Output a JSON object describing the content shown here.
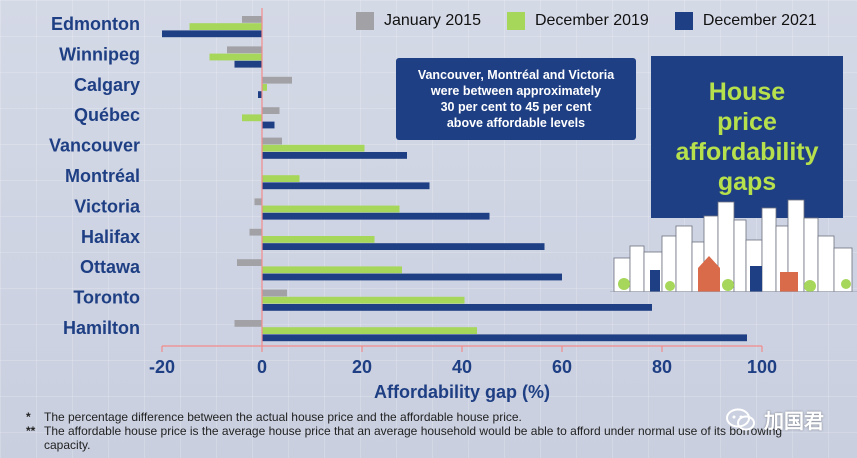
{
  "legend_position": "top",
  "callout": {
    "lines": [
      "Vancouver, Montréal and Victoria",
      "were between approximately",
      "30 per cent to 45 per cent",
      "above affordable levels"
    ]
  },
  "title_box": {
    "lines": [
      "House",
      "price",
      "affordability",
      "gaps"
    ]
  },
  "footnotes": [
    {
      "mark": "*",
      "text": "The percentage difference between the actual house price and the affordable house price."
    },
    {
      "mark": "**",
      "text": "The affordable house price is the average house price that an average household would be able to afford under normal use of its borrowing capacity."
    }
  ],
  "watermark": {
    "text": "加国君",
    "icon": "wechat-icon"
  },
  "colors": {
    "jan2015": "#a2a2a6",
    "dec2019": "#a6d65a",
    "dec2021": "#1f3f84",
    "category_text": "#1f3f84",
    "zero_line": "#f28b8b",
    "axis_text": "#1f3f84"
  },
  "chart_data": {
    "type": "bar",
    "orientation": "horizontal",
    "categories": [
      "Edmonton",
      "Winnipeg",
      "Calgary",
      "Québec",
      "Vancouver",
      "Montréal",
      "Victoria",
      "Halifax",
      "Ottawa",
      "Toronto",
      "Hamilton"
    ],
    "series": [
      {
        "name": "January 2015",
        "values": [
          -4,
          -7,
          6,
          3.5,
          4,
          0,
          -1.5,
          -2.5,
          -5,
          5,
          -5.5
        ]
      },
      {
        "name": "December 2019",
        "values": [
          -14.5,
          -10.5,
          1,
          -4,
          20.5,
          7.5,
          27.5,
          22.5,
          28,
          40.5,
          43
        ]
      },
      {
        "name": "December 2021",
        "values": [
          -20,
          -5.5,
          -0.8,
          2.5,
          29,
          33.5,
          45.5,
          56.5,
          60,
          78,
          97
        ]
      }
    ],
    "xlim": [
      -20,
      100
    ],
    "xticks": [
      -20,
      0,
      20,
      40,
      60,
      80,
      100
    ],
    "tick_labels": [
      "-20",
      "0",
      "20",
      "40",
      "60",
      "80",
      "100"
    ],
    "xlabel": "Affordability gap (%)",
    "ylabel": "",
    "grid": false
  }
}
